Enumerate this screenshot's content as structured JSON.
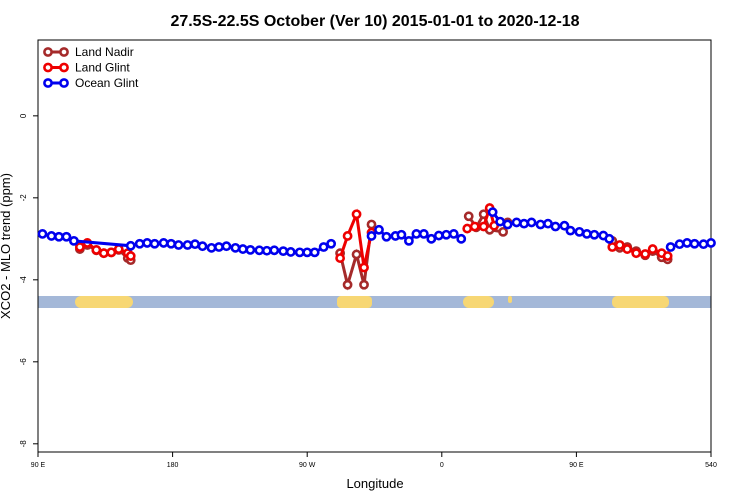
{
  "chart_data": {
    "type": "line",
    "title": "27.5S-22.5S October (Ver 10)   2015-01-01 to 2020-12-18",
    "x_label": "Longitude",
    "y_label": "XCO2 - MLO trend (ppm)",
    "xlim": [
      90,
      540
    ],
    "ylim": [
      -8.2,
      1.85
    ],
    "xticks": [
      {
        "value": 90,
        "label": "90 E"
      },
      180,
      {
        "value": 270,
        "label": "90 W"
      },
      {
        "value": 360,
        "label": "0"
      },
      {
        "value": 450,
        "label": "90 E"
      },
      540
    ],
    "yticks": [
      -8,
      -6,
      -4,
      -2,
      0
    ],
    "legend": "top-left",
    "series": [
      {
        "name": "Land Nadir",
        "color": "#a52a2a",
        "x": [
          118,
          123,
          129,
          134,
          139,
          144,
          150,
          152,
          220,
          292,
          297,
          303,
          308,
          313,
          350,
          378,
          383,
          388,
          392,
          401,
          404,
          440,
          474,
          479,
          484,
          490,
          496,
          501,
          507,
          511
        ],
        "values": [
          -3.25,
          -3.15,
          -3.28,
          -3.35,
          -3.33,
          -3.27,
          -3.47,
          -3.52,
          null,
          -3.35,
          -4.12,
          -3.38,
          -4.12,
          -2.65,
          null,
          -2.45,
          -2.72,
          -2.4,
          -2.78,
          -2.83,
          -2.6,
          null,
          -3.05,
          -3.22,
          -3.2,
          -3.3,
          -3.4,
          -3.3,
          -3.45,
          -3.5
        ]
      },
      {
        "name": "Land Glint",
        "color": "#ee0000",
        "x": [
          118,
          123,
          129,
          134,
          139,
          144,
          150,
          152,
          220,
          292,
          297,
          303,
          308,
          313,
          350,
          377,
          382,
          388,
          392,
          395,
          440,
          474,
          479,
          484,
          490,
          496,
          501,
          507,
          511
        ],
        "values": [
          -3.2,
          -3.1,
          -3.27,
          -3.35,
          -3.33,
          -3.25,
          -3.35,
          -3.42,
          null,
          -3.47,
          -2.93,
          -2.4,
          -3.7,
          -2.85,
          null,
          -2.75,
          -2.7,
          -2.7,
          -2.25,
          -2.68,
          null,
          -3.2,
          -3.15,
          -3.25,
          -3.35,
          -3.37,
          -3.25,
          -3.35,
          -3.42
        ]
      },
      {
        "name": "Ocean Glint",
        "color": "#0000ee",
        "x": [
          93,
          99,
          104,
          109,
          114,
          152,
          158,
          163,
          168,
          174,
          179,
          184,
          190,
          195,
          200,
          206,
          211,
          216,
          222,
          227,
          232,
          238,
          243,
          248,
          254,
          259,
          265,
          270,
          275,
          281,
          286,
          300,
          313,
          318,
          323,
          329,
          333,
          338,
          343,
          348,
          353,
          358,
          363,
          368,
          373,
          385,
          394,
          399,
          404,
          410,
          415,
          420,
          426,
          431,
          436,
          442,
          446,
          452,
          457,
          462,
          468,
          472,
          490,
          513,
          519,
          524,
          529,
          535,
          540
        ],
        "values": [
          -2.88,
          -2.93,
          -2.95,
          -2.95,
          -3.05,
          -3.17,
          -3.12,
          -3.1,
          -3.12,
          -3.1,
          -3.12,
          -3.15,
          -3.15,
          -3.13,
          -3.18,
          -3.22,
          -3.2,
          -3.18,
          -3.22,
          -3.25,
          -3.27,
          -3.28,
          -3.29,
          -3.28,
          -3.3,
          -3.32,
          -3.33,
          -3.33,
          -3.33,
          -3.2,
          -3.12,
          null,
          -2.93,
          -2.78,
          -2.95,
          -2.93,
          -2.9,
          -3.05,
          -2.88,
          -2.88,
          -3.0,
          -2.92,
          -2.9,
          -2.88,
          -3.0,
          null,
          -2.35,
          -2.58,
          -2.65,
          -2.6,
          -2.63,
          -2.6,
          -2.65,
          -2.63,
          -2.7,
          -2.68,
          -2.8,
          -2.83,
          -2.88,
          -2.9,
          -2.92,
          -3.0,
          null,
          -3.2,
          -3.13,
          -3.1,
          -3.12,
          -3.13,
          -3.1
        ]
      }
    ]
  }
}
